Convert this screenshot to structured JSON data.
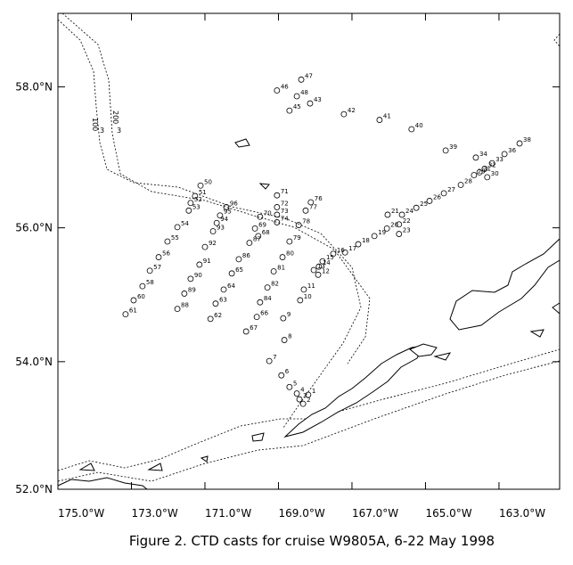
{
  "chart_data": {
    "type": "map",
    "caption": "Figure 2.  CTD casts for cruise W9805A, 6-22 May 1998",
    "xlim": [
      -175,
      -161.35
    ],
    "ylim": [
      52,
      59
    ],
    "xticks": [
      {
        "value": -175,
        "label": "175.0°W"
      },
      {
        "value": -173,
        "label": "173.0°W"
      },
      {
        "value": -171,
        "label": "171.0°W"
      },
      {
        "value": -169,
        "label": "169.0°W"
      },
      {
        "value": -167,
        "label": "167.0°W"
      },
      {
        "value": -165,
        "label": "165.0°W"
      },
      {
        "value": -163,
        "label": "163.0°W"
      }
    ],
    "yticks": [
      {
        "value": 52,
        "label": "52.0°N"
      },
      {
        "value": 54,
        "label": "54.0°N"
      },
      {
        "value": 56,
        "label": "56.0°N"
      },
      {
        "value": 58,
        "label": "58.0°N"
      }
    ],
    "contour_labels": [
      "100",
      "200",
      "3",
      "3"
    ],
    "color": "#000000",
    "labels": [
      "47",
      "46",
      "48",
      "45",
      "43",
      "42",
      "41",
      "40",
      "39",
      "38",
      "36",
      "34",
      "33",
      "32",
      "31",
      "30",
      "29",
      "28",
      "27",
      "26",
      "25",
      "24",
      "21",
      "22",
      "23",
      "20",
      "19",
      "18",
      "17",
      "16",
      "15",
      "14",
      "13",
      "12",
      "11",
      "10",
      "9",
      "8",
      "7",
      "6",
      "5",
      "4",
      "3",
      "2",
      "1",
      "50",
      "51",
      "52",
      "53",
      "54",
      "55",
      "56",
      "57",
      "58",
      "60",
      "61",
      "96",
      "95",
      "94",
      "93",
      "92",
      "91",
      "90",
      "89",
      "88",
      "87",
      "86",
      "65",
      "64",
      "63",
      "62",
      "70",
      "69",
      "68",
      "71",
      "72",
      "73",
      "74",
      "76",
      "77",
      "78",
      "79",
      "80",
      "81",
      "82",
      "84",
      "66",
      "67"
    ],
    "x": [
      -168.38,
      -169.04,
      -168.5,
      -168.7,
      -168.14,
      -167.22,
      -166.25,
      -165.38,
      -164.45,
      -162.44,
      -162.85,
      -163.63,
      -163.19,
      -163.39,
      -163.53,
      -163.32,
      -163.68,
      -164.04,
      -164.5,
      -164.89,
      -165.25,
      -165.64,
      -166.03,
      -165.72,
      -165.72,
      -166.05,
      -166.39,
      -166.83,
      -167.19,
      -167.51,
      -167.8,
      -167.9,
      -168.04,
      -167.92,
      -168.31,
      -168.41,
      -168.87,
      -168.84,
      -169.25,
      -168.92,
      -168.7,
      -168.5,
      -168.43,
      -168.33,
      -168.19,
      -171.12,
      -171.27,
      -171.39,
      -171.44,
      -171.75,
      -172.02,
      -172.26,
      -172.5,
      -172.7,
      -172.94,
      -173.16,
      -170.42,
      -170.59,
      -170.68,
      -170.78,
      -171.0,
      -171.15,
      -171.39,
      -171.56,
      -171.75,
      -169.79,
      -170.08,
      -170.27,
      -170.49,
      -170.71,
      -170.85,
      -169.5,
      -169.64,
      -169.55,
      -169.04,
      -169.04,
      -169.04,
      -169.04,
      -168.12,
      -168.26,
      -168.45,
      -168.7,
      -168.89,
      -169.13,
      -169.3,
      -169.5,
      -169.59,
      -169.88
    ],
    "values": [
      58.1,
      57.95,
      57.87,
      57.67,
      57.77,
      57.62,
      57.54,
      57.41,
      57.11,
      57.21,
      57.06,
      57.01,
      56.93,
      56.85,
      56.8,
      56.73,
      56.76,
      56.62,
      56.5,
      56.39,
      56.29,
      56.19,
      56.19,
      56.05,
      55.91,
      55.99,
      55.88,
      55.76,
      55.64,
      55.62,
      55.51,
      55.43,
      55.38,
      55.31,
      55.09,
      54.93,
      54.66,
      54.33,
      54.01,
      53.79,
      53.61,
      53.51,
      53.42,
      53.35,
      53.49,
      56.61,
      56.46,
      56.36,
      56.25,
      56.01,
      55.8,
      55.57,
      55.37,
      55.14,
      54.93,
      54.72,
      56.3,
      56.18,
      56.07,
      55.95,
      55.72,
      55.46,
      55.25,
      55.03,
      54.8,
      55.78,
      55.54,
      55.33,
      55.09,
      54.88,
      54.65,
      56.16,
      55.99,
      55.88,
      56.47,
      56.3,
      56.19,
      56.08,
      56.37,
      56.25,
      56.04,
      55.8,
      55.57,
      55.36,
      55.12,
      54.9,
      54.68,
      54.46
    ]
  }
}
